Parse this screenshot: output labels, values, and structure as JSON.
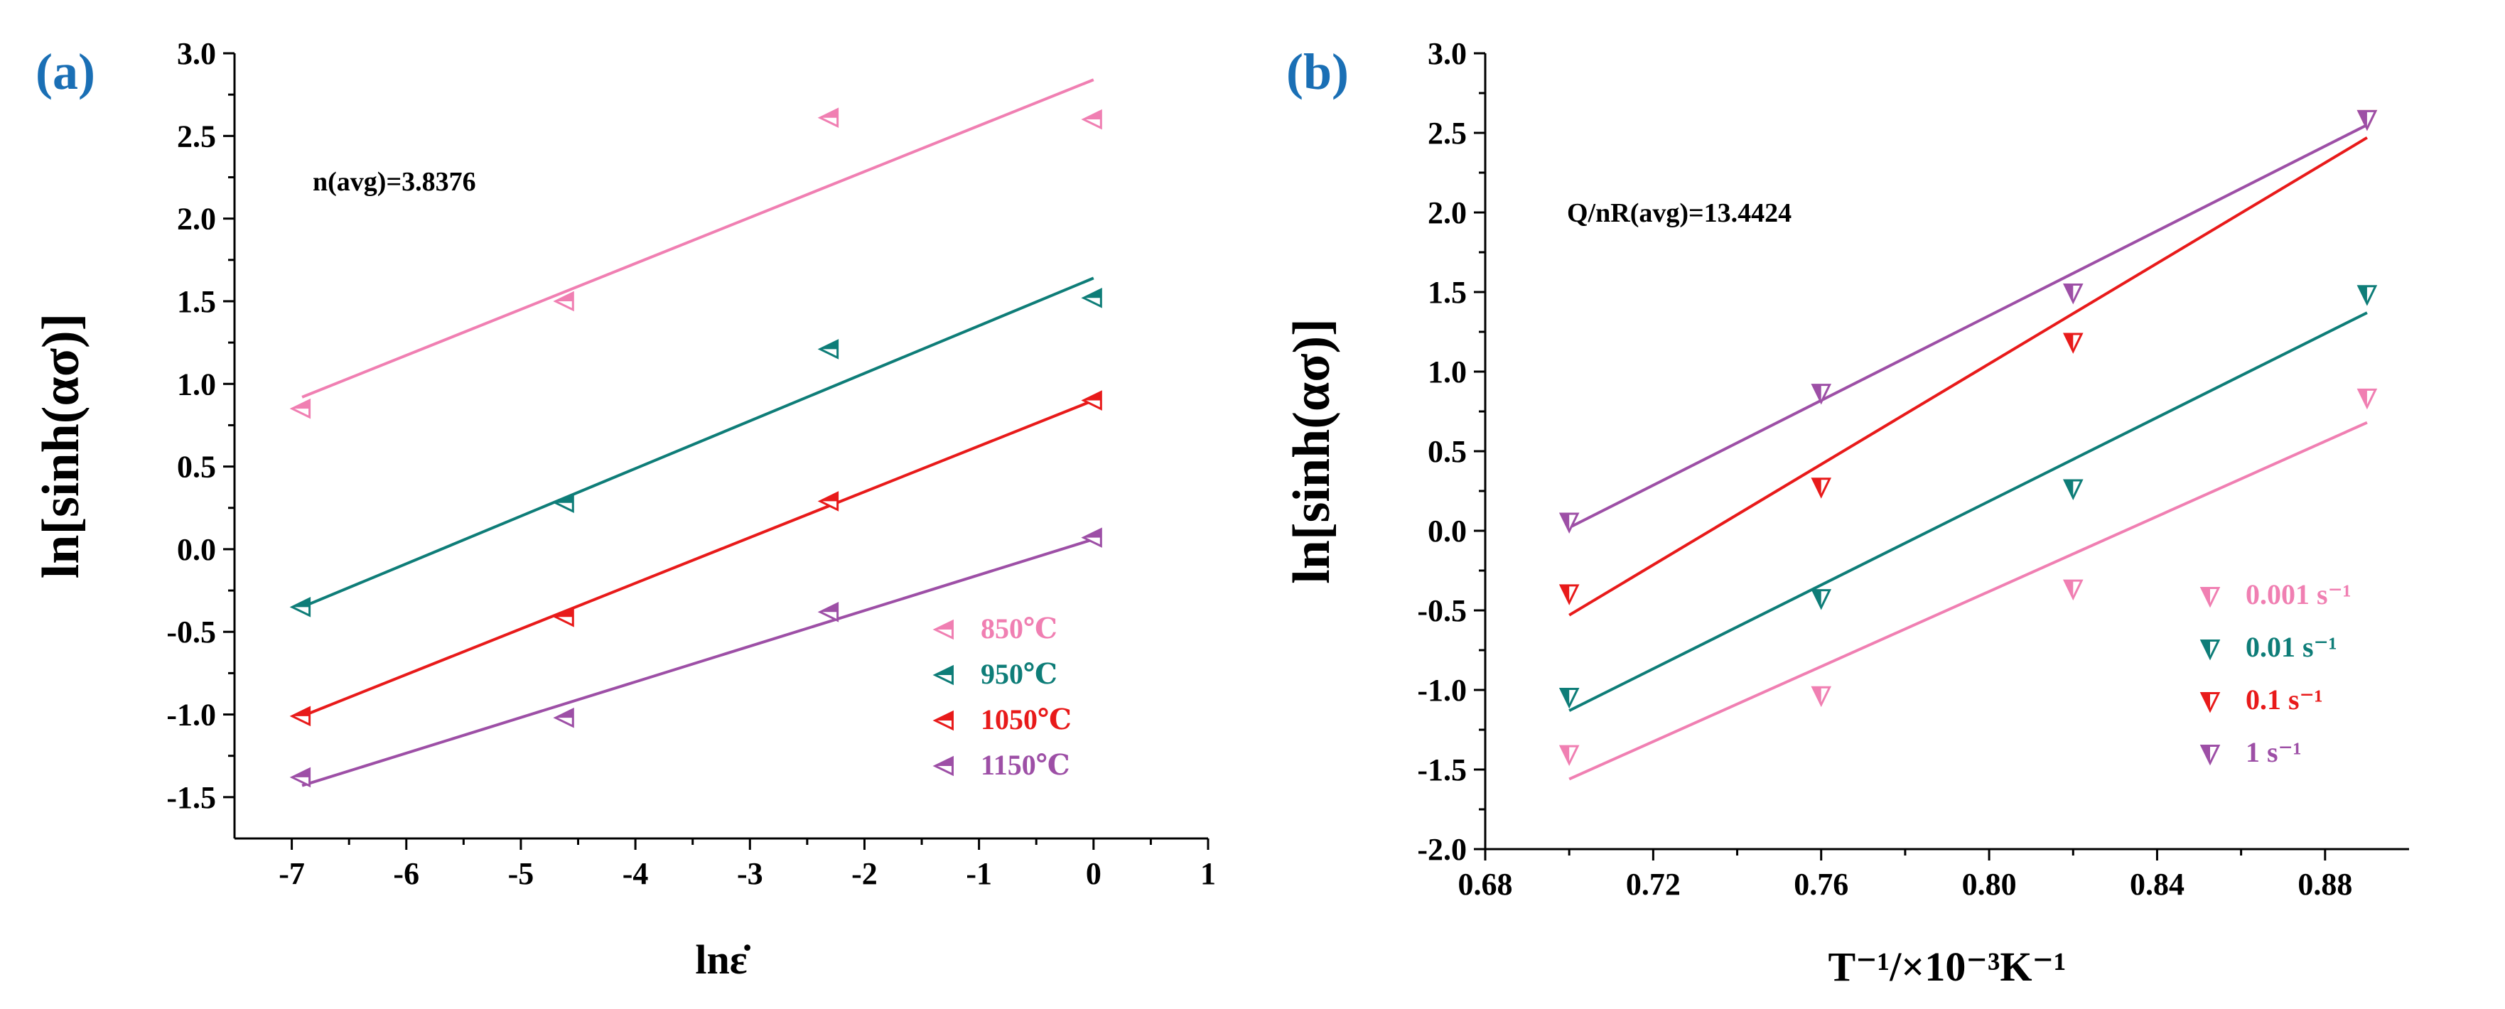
{
  "chart_data": [
    {
      "panel_label": "(a)",
      "type": "scatter",
      "annotation": "n(avg)=3.8376",
      "xlabel": "lnε̇",
      "ylabel": "ln[sinh(ασ)]",
      "xlim": [
        -7.5,
        1
      ],
      "ylim": [
        -1.75,
        3.0
      ],
      "xticks": [
        -7,
        -6,
        -5,
        -4,
        -3,
        -2,
        -1,
        0,
        1
      ],
      "yticks": [
        -1.5,
        -1.0,
        -0.5,
        0.0,
        0.5,
        1.0,
        1.5,
        2.0,
        2.5,
        3.0
      ],
      "ytick_labels": [
        "-1.5",
        "-1.0",
        "-0.5",
        "0.0",
        "0.5",
        "1.0",
        "1.5",
        "2.0",
        "2.5",
        "3.0"
      ],
      "legend_position": "bottom-right",
      "marker": "left-pointing half-filled triangle",
      "x": [
        -6.91,
        -4.61,
        -2.3,
        0.0
      ],
      "series": [
        {
          "name": "850℃",
          "color": "#f07fb2",
          "values": [
            0.85,
            1.5,
            2.61,
            2.6
          ],
          "fit": [
            0.92,
            2.84
          ]
        },
        {
          "name": "950℃",
          "color": "#0e7d78",
          "values": [
            -0.35,
            0.28,
            1.21,
            1.52
          ],
          "fit": [
            -0.35,
            1.64
          ]
        },
        {
          "name": "1050℃",
          "color": "#e81a1a",
          "values": [
            -1.01,
            -0.41,
            0.29,
            0.9
          ],
          "fit": [
            -1.01,
            0.9
          ]
        },
        {
          "name": "1150℃",
          "color": "#9d4fa6",
          "values": [
            -1.38,
            -1.02,
            -0.38,
            0.07
          ],
          "fit": [
            -1.43,
            0.06
          ]
        }
      ]
    },
    {
      "panel_label": "(b)",
      "type": "scatter",
      "annotation": "Q/nR(avg)=13.4424",
      "xlabel": "T⁻¹/×10⁻³K⁻¹",
      "ylabel": "ln[sinh(ασ)]",
      "xlim": [
        0.68,
        0.9
      ],
      "ylim": [
        -2.0,
        3.0
      ],
      "xticks": [
        0.68,
        0.72,
        0.76,
        0.8,
        0.84,
        0.88
      ],
      "xtick_labels": [
        "0.68",
        "0.72",
        "0.76",
        "0.80",
        "0.84",
        "0.88"
      ],
      "yticks": [
        -2.0,
        -1.5,
        -1.0,
        -0.5,
        0.0,
        0.5,
        1.0,
        1.5,
        2.0,
        2.5,
        3.0
      ],
      "ytick_labels": [
        "-2.0",
        "-1.5",
        "-1.0",
        "-0.5",
        "0.0",
        "0.5",
        "1.0",
        "1.5",
        "2.0",
        "2.5",
        "3.0"
      ],
      "legend_position": "bottom-right",
      "marker": "down-pointing half-filled triangle",
      "x": [
        0.7,
        0.76,
        0.82,
        0.89
      ],
      "series": [
        {
          "name": "0.001 s⁻¹",
          "color": "#f07fb2",
          "values": [
            -1.4,
            -1.03,
            -0.36,
            0.84
          ],
          "fit": [
            -1.56,
            0.68
          ]
        },
        {
          "name": "0.01 s⁻¹",
          "color": "#0e7d78",
          "values": [
            -1.04,
            -0.42,
            0.27,
            1.49
          ],
          "fit": [
            -1.13,
            1.37
          ]
        },
        {
          "name": "0.1 s⁻¹",
          "color": "#e81a1a",
          "values": [
            -0.39,
            0.28,
            1.19,
            2.59
          ],
          "fit": [
            -0.53,
            2.47
          ]
        },
        {
          "name": "1 s⁻¹",
          "color": "#9d4fa6",
          "values": [
            0.06,
            0.87,
            1.5,
            2.59
          ],
          "fit": [
            0.02,
            2.55
          ]
        }
      ]
    }
  ]
}
